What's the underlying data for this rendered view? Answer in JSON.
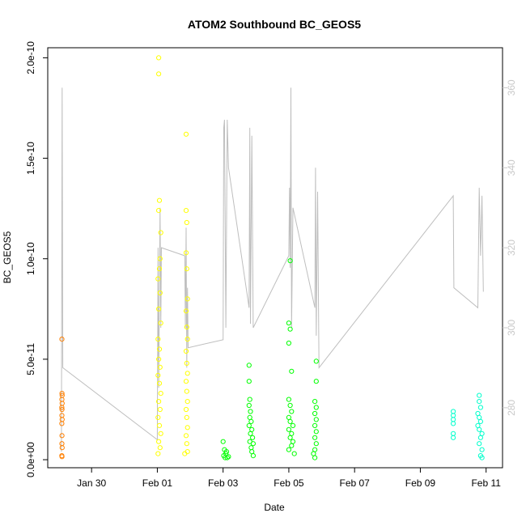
{
  "chart_data": {
    "type": "scatter",
    "title": "ATOM2 Southbound BC_GEOS5",
    "xlabel": "Date",
    "ylabel": "BC_GEOS5",
    "x_ticks": [
      "Jan 30",
      "Feb 01",
      "Feb 03",
      "Feb 05",
      "Feb 07",
      "Feb 09",
      "Feb 11"
    ],
    "x_tick_values": [
      "2017-01-30",
      "2017-02-01",
      "2017-02-03",
      "2017-02-05",
      "2017-02-07",
      "2017-02-09",
      "2017-02-11"
    ],
    "xlim": [
      "2017-01-28T16:00",
      "2017-02-11T12:00"
    ],
    "y_ticks": [
      "0.0e+00",
      "5.0e-11",
      "1.0e-10",
      "1.5e-10",
      "2.0e-10"
    ],
    "y_tick_values": [
      0,
      5e-11,
      1e-10,
      1.5e-10,
      2e-10
    ],
    "ylim": [
      -4e-12,
      2.05e-10
    ],
    "y2_ticks": [
      "280",
      "300",
      "320",
      "340",
      "360"
    ],
    "y2_tick_values": [
      280,
      300,
      320,
      340,
      360
    ],
    "y2lim": [
      265,
      370
    ],
    "grid": false,
    "colors": {
      "secondary_line": "#bebebe",
      "secondary_axis_text": "#c8c8c8",
      "axis": "#000000"
    },
    "series": [
      {
        "color": "#ff7f00",
        "points": [
          [
            "2017-01-29T02:20",
            6e-11
          ],
          [
            "2017-01-29T02:25",
            3.3e-11
          ],
          [
            "2017-01-29T02:30",
            3.2e-11
          ],
          [
            "2017-01-29T02:20",
            3e-11
          ],
          [
            "2017-01-29T02:30",
            2.8e-11
          ],
          [
            "2017-01-29T02:15",
            2.6e-11
          ],
          [
            "2017-01-29T02:25",
            2.5e-11
          ],
          [
            "2017-01-29T02:20",
            2.2e-11
          ],
          [
            "2017-01-29T02:30",
            2e-11
          ],
          [
            "2017-01-29T02:15",
            1.8e-11
          ],
          [
            "2017-01-29T02:25",
            1.2e-11
          ],
          [
            "2017-01-29T02:20",
            8e-12
          ],
          [
            "2017-01-29T02:30",
            6e-12
          ],
          [
            "2017-01-29T02:15",
            2e-12
          ],
          [
            "2017-01-29T02:25",
            1.5e-12
          ]
        ]
      },
      {
        "color": "#ffff00",
        "points": [
          [
            "2017-02-01T01:00",
            2e-10
          ],
          [
            "2017-02-01T01:00",
            1.92e-10
          ],
          [
            "2017-02-01T01:30",
            1.29e-10
          ],
          [
            "2017-02-01T01:00",
            1.24e-10
          ],
          [
            "2017-02-01T02:30",
            1.13e-10
          ],
          [
            "2017-02-01T02:00",
            1e-10
          ],
          [
            "2017-02-01T01:30",
            9.5e-11
          ],
          [
            "2017-02-01T00:30",
            9e-11
          ],
          [
            "2017-02-01T02:00",
            8.3e-11
          ],
          [
            "2017-02-01T01:00",
            7.5e-11
          ],
          [
            "2017-02-01T02:30",
            6.8e-11
          ],
          [
            "2017-02-01T00:30",
            6e-11
          ],
          [
            "2017-02-01T01:30",
            5.5e-11
          ],
          [
            "2017-02-01T01:00",
            5e-11
          ],
          [
            "2017-02-01T02:00",
            4.6e-11
          ],
          [
            "2017-02-01T00:30",
            4.2e-11
          ],
          [
            "2017-02-01T01:30",
            3.8e-11
          ],
          [
            "2017-02-01T02:30",
            3.3e-11
          ],
          [
            "2017-02-01T01:00",
            2.9e-11
          ],
          [
            "2017-02-01T02:00",
            2.5e-11
          ],
          [
            "2017-02-01T00:30",
            2.1e-11
          ],
          [
            "2017-02-01T01:30",
            1.7e-11
          ],
          [
            "2017-02-01T02:30",
            1.3e-11
          ],
          [
            "2017-02-01T01:00",
            9e-12
          ],
          [
            "2017-02-01T02:00",
            6e-12
          ],
          [
            "2017-02-01T00:30",
            3e-12
          ],
          [
            "2017-02-01T21:00",
            1.62e-10
          ],
          [
            "2017-02-01T21:00",
            1.24e-10
          ],
          [
            "2017-02-01T21:30",
            1.18e-10
          ],
          [
            "2017-02-01T21:00",
            1.03e-10
          ],
          [
            "2017-02-01T21:30",
            9.5e-11
          ],
          [
            "2017-02-01T22:00",
            8e-11
          ],
          [
            "2017-02-01T21:00",
            7.4e-11
          ],
          [
            "2017-02-01T21:30",
            6.6e-11
          ],
          [
            "2017-02-01T22:00",
            6e-11
          ],
          [
            "2017-02-01T21:00",
            5.4e-11
          ],
          [
            "2017-02-01T21:30",
            4.8e-11
          ],
          [
            "2017-02-01T22:00",
            4.3e-11
          ],
          [
            "2017-02-01T21:00",
            3.9e-11
          ],
          [
            "2017-02-01T21:30",
            3.4e-11
          ],
          [
            "2017-02-01T22:00",
            2.9e-11
          ],
          [
            "2017-02-01T21:00",
            2.5e-11
          ],
          [
            "2017-02-01T21:30",
            2.1e-11
          ],
          [
            "2017-02-01T22:00",
            1.6e-11
          ],
          [
            "2017-02-01T21:00",
            1.2e-11
          ],
          [
            "2017-02-01T21:30",
            8e-12
          ],
          [
            "2017-02-01T22:00",
            4e-12
          ],
          [
            "2017-02-01T20:00",
            3e-12
          ]
        ]
      },
      {
        "color": "#00ff00",
        "points": [
          [
            "2017-02-03T00:00",
            9e-12
          ],
          [
            "2017-02-03T01:00",
            5e-12
          ],
          [
            "2017-02-03T02:00",
            3e-12
          ],
          [
            "2017-02-03T00:30",
            2e-12
          ],
          [
            "2017-02-03T03:00",
            1e-12
          ],
          [
            "2017-02-03T04:00",
            1.5e-12
          ],
          [
            "2017-02-03T02:30",
            4e-12
          ],
          [
            "2017-02-03T01:30",
            1e-12
          ],
          [
            "2017-02-03T19:00",
            4.7e-11
          ],
          [
            "2017-02-03T19:00",
            3.9e-11
          ],
          [
            "2017-02-03T19:30",
            3e-11
          ],
          [
            "2017-02-03T19:00",
            2.7e-11
          ],
          [
            "2017-02-03T20:00",
            2.4e-11
          ],
          [
            "2017-02-03T19:30",
            2.1e-11
          ],
          [
            "2017-02-03T20:30",
            1.9e-11
          ],
          [
            "2017-02-03T19:00",
            1.7e-11
          ],
          [
            "2017-02-03T21:00",
            1.5e-11
          ],
          [
            "2017-02-03T20:00",
            1.3e-11
          ],
          [
            "2017-02-03T21:30",
            1.1e-11
          ],
          [
            "2017-02-03T19:30",
            9e-12
          ],
          [
            "2017-02-03T22:00",
            8e-12
          ],
          [
            "2017-02-03T20:30",
            6e-12
          ],
          [
            "2017-02-03T21:00",
            4e-12
          ],
          [
            "2017-02-03T22:00",
            2e-12
          ],
          [
            "2017-02-05T01:00",
            9.9e-11
          ],
          [
            "2017-02-05T00:00",
            6.8e-11
          ],
          [
            "2017-02-05T01:00",
            6.5e-11
          ],
          [
            "2017-02-05T00:00",
            5.8e-11
          ],
          [
            "2017-02-05T02:00",
            4.4e-11
          ],
          [
            "2017-02-05T00:00",
            3e-11
          ],
          [
            "2017-02-05T01:00",
            2.7e-11
          ],
          [
            "2017-02-05T02:00",
            2.4e-11
          ],
          [
            "2017-02-05T00:00",
            2.1e-11
          ],
          [
            "2017-02-05T01:00",
            1.9e-11
          ],
          [
            "2017-02-05T03:00",
            1.7e-11
          ],
          [
            "2017-02-05T00:00",
            1.5e-11
          ],
          [
            "2017-02-05T02:00",
            1.3e-11
          ],
          [
            "2017-02-05T01:00",
            1.1e-11
          ],
          [
            "2017-02-05T03:00",
            9e-12
          ],
          [
            "2017-02-05T02:00",
            7e-12
          ],
          [
            "2017-02-05T00:00",
            5e-12
          ],
          [
            "2017-02-05T04:00",
            3e-12
          ],
          [
            "2017-02-05T20:00",
            4.9e-11
          ],
          [
            "2017-02-05T20:00",
            3.9e-11
          ],
          [
            "2017-02-05T19:00",
            2.9e-11
          ],
          [
            "2017-02-05T20:00",
            2.6e-11
          ],
          [
            "2017-02-05T19:00",
            2.3e-11
          ],
          [
            "2017-02-05T20:00",
            2e-11
          ],
          [
            "2017-02-05T19:00",
            1.7e-11
          ],
          [
            "2017-02-05T20:00",
            1.4e-11
          ],
          [
            "2017-02-05T19:00",
            1.1e-11
          ],
          [
            "2017-02-05T20:00",
            8e-12
          ],
          [
            "2017-02-05T19:00",
            5e-12
          ],
          [
            "2017-02-05T18:00",
            3e-12
          ],
          [
            "2017-02-05T19:00",
            1e-12
          ]
        ]
      },
      {
        "color": "#00ffcc",
        "points": [
          [
            "2017-02-10T00:00",
            2.4e-11
          ],
          [
            "2017-02-10T00:00",
            2.2e-11
          ],
          [
            "2017-02-10T00:00",
            2e-11
          ],
          [
            "2017-02-10T00:00",
            1.8e-11
          ],
          [
            "2017-02-10T00:00",
            1.3e-11
          ],
          [
            "2017-02-10T00:00",
            1.1e-11
          ],
          [
            "2017-02-10T19:00",
            3.2e-11
          ],
          [
            "2017-02-10T19:00",
            2.9e-11
          ],
          [
            "2017-02-10T20:00",
            2.6e-11
          ],
          [
            "2017-02-10T18:00",
            2.3e-11
          ],
          [
            "2017-02-10T19:00",
            2.1e-11
          ],
          [
            "2017-02-10T20:00",
            1.9e-11
          ],
          [
            "2017-02-10T18:00",
            1.7e-11
          ],
          [
            "2017-02-10T19:00",
            1.5e-11
          ],
          [
            "2017-02-10T21:00",
            1.3e-11
          ],
          [
            "2017-02-10T20:00",
            1.1e-11
          ],
          [
            "2017-02-10T19:00",
            8e-12
          ],
          [
            "2017-02-10T21:00",
            5e-12
          ],
          [
            "2017-02-10T20:00",
            2e-12
          ],
          [
            "2017-02-10T21:00",
            1e-12
          ]
        ]
      }
    ],
    "secondary_line": {
      "points": [
        [
          "2017-01-29T02:00",
          269
        ],
        [
          "2017-01-29T02:30",
          360
        ],
        [
          "2017-01-29T03:00",
          290
        ],
        [
          "2017-02-01T00:00",
          272
        ],
        [
          "2017-02-01T00:30",
          320
        ],
        [
          "2017-02-01T01:00",
          285
        ],
        [
          "2017-02-01T02:00",
          330
        ],
        [
          "2017-02-01T02:30",
          300
        ],
        [
          "2017-02-01T03:00",
          320
        ],
        [
          "2017-02-01T20:00",
          318
        ],
        [
          "2017-02-01T20:30",
          300
        ],
        [
          "2017-02-01T21:00",
          325
        ],
        [
          "2017-02-01T21:30",
          290
        ],
        [
          "2017-02-01T22:00",
          310
        ],
        [
          "2017-02-01T22:30",
          295
        ],
        [
          "2017-02-03T00:00",
          297
        ],
        [
          "2017-02-03T00:30",
          350
        ],
        [
          "2017-02-03T01:00",
          352
        ],
        [
          "2017-02-03T02:00",
          300
        ],
        [
          "2017-02-03T03:00",
          352
        ],
        [
          "2017-02-03T04:00",
          340
        ],
        [
          "2017-02-03T19:00",
          305
        ],
        [
          "2017-02-03T19:30",
          350
        ],
        [
          "2017-02-03T20:00",
          301
        ],
        [
          "2017-02-03T21:00",
          348
        ],
        [
          "2017-02-03T22:00",
          300
        ],
        [
          "2017-02-05T00:00",
          318
        ],
        [
          "2017-02-05T00:30",
          335
        ],
        [
          "2017-02-05T01:00",
          315
        ],
        [
          "2017-02-05T01:30",
          360
        ],
        [
          "2017-02-05T02:00",
          300
        ],
        [
          "2017-02-05T03:00",
          330
        ],
        [
          "2017-02-05T19:00",
          305
        ],
        [
          "2017-02-05T19:30",
          340
        ],
        [
          "2017-02-05T20:00",
          298
        ],
        [
          "2017-02-05T21:00",
          334
        ],
        [
          "2017-02-05T22:00",
          290
        ],
        [
          "2017-02-10T00:00",
          333
        ],
        [
          "2017-02-10T00:30",
          310
        ],
        [
          "2017-02-10T18:00",
          305
        ],
        [
          "2017-02-10T19:00",
          335
        ],
        [
          "2017-02-10T20:00",
          318
        ],
        [
          "2017-02-10T21:00",
          333
        ],
        [
          "2017-02-10T22:00",
          309
        ]
      ]
    }
  }
}
